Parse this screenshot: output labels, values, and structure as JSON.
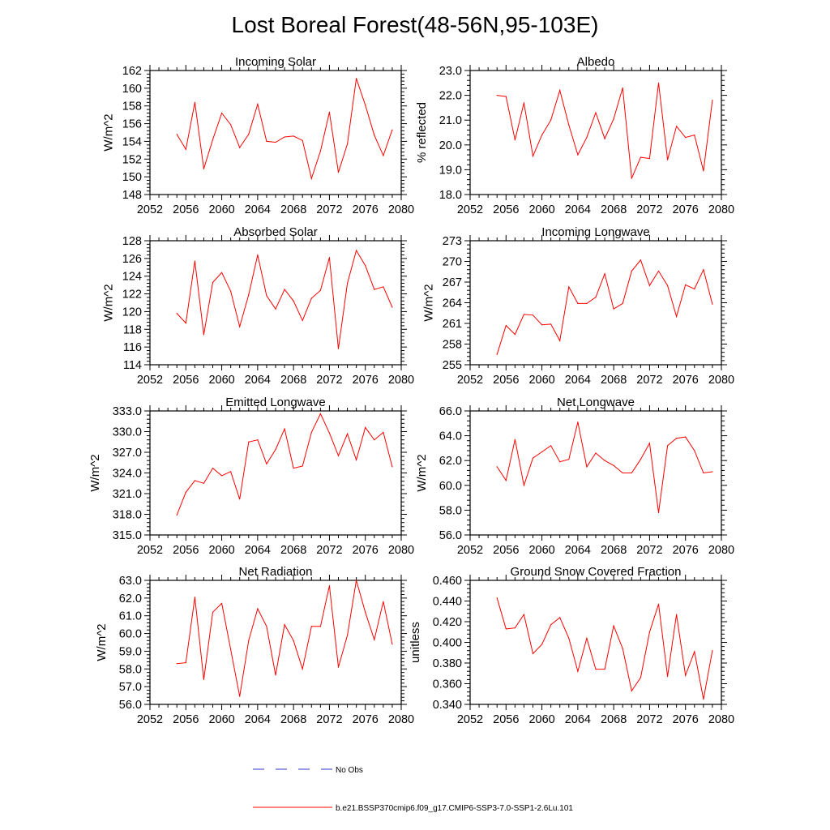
{
  "figure": {
    "title": "Lost Boreal Forest(48-56N,95-103E)",
    "line_color": "#ff0000",
    "obs_color": "#3333cc"
  },
  "legend": {
    "obs_label": "No Obs",
    "model_label": "b.e21.BSSP370cmip6.f09_g17.CMIP6-SSP3-7.0-SSP1-2.6Lu.101"
  },
  "chart_data": [
    {
      "type": "line",
      "title": "Incoming Solar",
      "xlabel": "",
      "ylabel": "W/m^2",
      "xlim": [
        2052,
        2080
      ],
      "ylim": [
        148,
        162
      ],
      "xticks": [
        "2052",
        "2056",
        "2060",
        "2064",
        "2068",
        "2072",
        "2076",
        "2080"
      ],
      "yticks": [
        "148",
        "150",
        "152",
        "154",
        "156",
        "158",
        "160",
        "162"
      ],
      "x": [
        2055,
        2056,
        2057,
        2058,
        2059,
        2060,
        2061,
        2062,
        2063,
        2064,
        2065,
        2066,
        2067,
        2068,
        2069,
        2070,
        2071,
        2072,
        2073,
        2074,
        2075,
        2076,
        2077,
        2078,
        2079
      ],
      "values": [
        154.8,
        153.1,
        158.4,
        150.9,
        154.2,
        157.2,
        155.9,
        153.3,
        154.8,
        158.2,
        154.0,
        153.9,
        154.5,
        154.6,
        154.1,
        149.8,
        152.9,
        157.3,
        150.5,
        153.7,
        161.1,
        158.1,
        154.7,
        152.4,
        155.3
      ]
    },
    {
      "type": "line",
      "title": "Albedo",
      "xlabel": "",
      "ylabel": "% reflected",
      "xlim": [
        2052,
        2080
      ],
      "ylim": [
        18.0,
        23.0
      ],
      "xticks": [
        "2052",
        "2056",
        "2060",
        "2064",
        "2068",
        "2072",
        "2076",
        "2080"
      ],
      "yticks": [
        "18.0",
        "19.0",
        "20.0",
        "21.0",
        "22.0",
        "23.0"
      ],
      "x": [
        2055,
        2056,
        2057,
        2058,
        2059,
        2060,
        2061,
        2062,
        2063,
        2064,
        2065,
        2066,
        2067,
        2068,
        2069,
        2070,
        2071,
        2072,
        2073,
        2074,
        2075,
        2076,
        2077,
        2078,
        2079
      ],
      "values": [
        22.0,
        21.95,
        20.2,
        21.7,
        19.55,
        20.4,
        21.0,
        22.2,
        20.8,
        19.6,
        20.3,
        21.3,
        20.25,
        21.05,
        22.3,
        18.65,
        19.5,
        19.45,
        22.5,
        19.4,
        20.75,
        20.3,
        20.4,
        18.95,
        21.8
      ]
    },
    {
      "type": "line",
      "title": "Absorbed Solar",
      "xlabel": "",
      "ylabel": "W/m^2",
      "xlim": [
        2052,
        2080
      ],
      "ylim": [
        114,
        128
      ],
      "xticks": [
        "2052",
        "2056",
        "2060",
        "2064",
        "2068",
        "2072",
        "2076",
        "2080"
      ],
      "yticks": [
        "114",
        "116",
        "118",
        "120",
        "122",
        "124",
        "126",
        "128"
      ],
      "x": [
        2055,
        2056,
        2057,
        2058,
        2059,
        2060,
        2061,
        2062,
        2063,
        2064,
        2065,
        2066,
        2067,
        2068,
        2069,
        2070,
        2071,
        2072,
        2073,
        2074,
        2075,
        2076,
        2077,
        2078,
        2079
      ],
      "values": [
        119.8,
        118.7,
        125.7,
        117.4,
        123.3,
        124.4,
        122.3,
        118.3,
        121.9,
        126.4,
        121.8,
        120.3,
        122.5,
        121.2,
        119.0,
        121.5,
        122.4,
        126.1,
        115.8,
        123.2,
        126.9,
        125.2,
        122.5,
        122.8,
        120.5
      ]
    },
    {
      "type": "line",
      "title": "Incoming Longwave",
      "xlabel": "",
      "ylabel": "W/m^2",
      "xlim": [
        2052,
        2080
      ],
      "ylim": [
        255,
        273
      ],
      "xticks": [
        "2052",
        "2056",
        "2060",
        "2064",
        "2068",
        "2072",
        "2076",
        "2080"
      ],
      "yticks": [
        "255",
        "258",
        "261",
        "264",
        "267",
        "270",
        "273"
      ],
      "x": [
        2055,
        2056,
        2057,
        2058,
        2059,
        2060,
        2061,
        2062,
        2063,
        2064,
        2065,
        2066,
        2067,
        2068,
        2069,
        2070,
        2071,
        2072,
        2073,
        2074,
        2075,
        2076,
        2077,
        2078,
        2079
      ],
      "values": [
        256.5,
        260.7,
        259.4,
        262.3,
        262.2,
        260.8,
        260.9,
        258.5,
        266.3,
        263.9,
        263.9,
        264.8,
        268.2,
        263.1,
        263.9,
        268.6,
        270.2,
        266.5,
        268.6,
        266.5,
        262.0,
        266.6,
        266.0,
        268.8,
        263.8
      ]
    },
    {
      "type": "line",
      "title": "Emitted Longwave",
      "xlabel": "",
      "ylabel": "W/m^2",
      "xlim": [
        2052,
        2080
      ],
      "ylim": [
        315.0,
        333.0
      ],
      "xticks": [
        "2052",
        "2056",
        "2060",
        "2064",
        "2068",
        "2072",
        "2076",
        "2080"
      ],
      "yticks": [
        "315.0",
        "318.0",
        "321.0",
        "324.0",
        "327.0",
        "330.0",
        "333.0"
      ],
      "x": [
        2055,
        2056,
        2057,
        2058,
        2059,
        2060,
        2061,
        2062,
        2063,
        2064,
        2065,
        2066,
        2067,
        2068,
        2069,
        2070,
        2071,
        2072,
        2073,
        2074,
        2075,
        2076,
        2077,
        2078,
        2079
      ],
      "values": [
        317.9,
        321.2,
        322.9,
        322.5,
        324.7,
        323.6,
        324.2,
        320.2,
        328.5,
        328.8,
        325.3,
        327.4,
        330.4,
        324.7,
        325.0,
        329.9,
        332.6,
        329.8,
        326.5,
        329.7,
        325.9,
        330.6,
        328.8,
        329.9,
        324.9
      ]
    },
    {
      "type": "line",
      "title": "Net Longwave",
      "xlabel": "",
      "ylabel": "W/m^2",
      "xlim": [
        2052,
        2080
      ],
      "ylim": [
        56.0,
        66.0
      ],
      "xticks": [
        "2052",
        "2056",
        "2060",
        "2064",
        "2068",
        "2072",
        "2076",
        "2080"
      ],
      "yticks": [
        "56.0",
        "58.0",
        "60.0",
        "62.0",
        "64.0",
        "66.0"
      ],
      "x": [
        2055,
        2056,
        2057,
        2058,
        2059,
        2060,
        2061,
        2062,
        2063,
        2064,
        2065,
        2066,
        2067,
        2068,
        2069,
        2070,
        2071,
        2072,
        2073,
        2074,
        2075,
        2076,
        2077,
        2078,
        2079
      ],
      "values": [
        61.5,
        60.4,
        63.7,
        60.0,
        62.2,
        62.7,
        63.2,
        61.9,
        62.1,
        65.1,
        61.5,
        62.6,
        62.0,
        61.6,
        61.0,
        61.0,
        62.1,
        63.4,
        57.8,
        63.2,
        63.8,
        63.9,
        62.8,
        61.0,
        61.1
      ]
    },
    {
      "type": "line",
      "title": "Net Radiation",
      "xlabel": "",
      "ylabel": "W/m^2",
      "xlim": [
        2052,
        2080
      ],
      "ylim": [
        56.0,
        63.0
      ],
      "xticks": [
        "2052",
        "2056",
        "2060",
        "2064",
        "2068",
        "2072",
        "2076",
        "2080"
      ],
      "yticks": [
        "56.0",
        "57.0",
        "58.0",
        "59.0",
        "60.0",
        "61.0",
        "62.0",
        "63.0"
      ],
      "x": [
        2055,
        2056,
        2057,
        2058,
        2059,
        2060,
        2061,
        2062,
        2063,
        2064,
        2065,
        2066,
        2067,
        2068,
        2069,
        2070,
        2071,
        2072,
        2073,
        2074,
        2075,
        2076,
        2077,
        2078,
        2079
      ],
      "values": [
        58.3,
        58.35,
        62.05,
        57.4,
        61.2,
        61.7,
        59.1,
        56.45,
        59.6,
        61.4,
        60.4,
        57.65,
        60.5,
        59.6,
        58.0,
        60.4,
        60.4,
        62.7,
        58.1,
        59.9,
        63.0,
        61.2,
        59.65,
        61.8,
        59.4
      ]
    },
    {
      "type": "line",
      "title": "Ground Snow Covered Fraction",
      "xlabel": "",
      "ylabel": "unitless",
      "xlim": [
        2052,
        2080
      ],
      "ylim": [
        0.34,
        0.46
      ],
      "xticks": [
        "2052",
        "2056",
        "2060",
        "2064",
        "2068",
        "2072",
        "2076",
        "2080"
      ],
      "yticks": [
        "0.340",
        "0.360",
        "0.380",
        "0.400",
        "0.420",
        "0.440",
        "0.460"
      ],
      "x": [
        2055,
        2056,
        2057,
        2058,
        2059,
        2060,
        2061,
        2062,
        2063,
        2064,
        2065,
        2066,
        2067,
        2068,
        2069,
        2070,
        2071,
        2072,
        2073,
        2074,
        2075,
        2076,
        2077,
        2078,
        2079
      ],
      "values": [
        0.443,
        0.413,
        0.414,
        0.427,
        0.389,
        0.398,
        0.417,
        0.424,
        0.404,
        0.372,
        0.404,
        0.374,
        0.374,
        0.416,
        0.394,
        0.353,
        0.366,
        0.41,
        0.437,
        0.367,
        0.427,
        0.368,
        0.391,
        0.345,
        0.392
      ]
    }
  ]
}
